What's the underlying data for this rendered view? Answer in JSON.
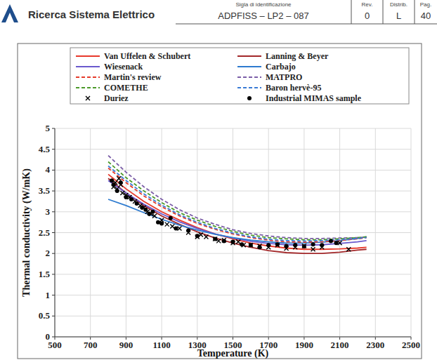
{
  "header": {
    "title": "Ricerca Sistema Elettrico",
    "columns": [
      "Sigla di identificazione",
      "Rev.",
      "Distrib.",
      "Pag."
    ],
    "values": [
      "ADPFISS – LP2 – 087",
      "0",
      "L",
      "40"
    ]
  },
  "chart_data": {
    "type": "line",
    "x_label": "Temperature (K)",
    "y_label": "Thermal conductivity (W/mK)",
    "xlim": [
      500,
      2500
    ],
    "xticks": [
      500,
      700,
      900,
      1100,
      1300,
      1500,
      1700,
      1900,
      2100,
      2300,
      2500
    ],
    "ylim": [
      0,
      5
    ],
    "yticks": [
      0,
      0.5,
      1,
      1.5,
      2,
      2.5,
      3,
      3.5,
      4,
      4.5,
      5
    ],
    "grid": true,
    "legend": "top",
    "series": [
      {
        "name": "Van Uffelen & Schubert",
        "type": "line",
        "line_style": "solid",
        "color": "#e8392b",
        "x": [
          800,
          900,
          1000,
          1100,
          1200,
          1300,
          1400,
          1500,
          1600,
          1700,
          1800,
          1900,
          2000,
          2100,
          2200,
          2250
        ],
        "values": [
          3.9,
          3.55,
          3.25,
          3.0,
          2.8,
          2.62,
          2.47,
          2.35,
          2.25,
          2.18,
          2.13,
          2.1,
          2.1,
          2.11,
          2.13,
          2.15
        ]
      },
      {
        "name": "Lanning & Beyer",
        "type": "line",
        "line_style": "solid",
        "color": "#a3282a",
        "x": [
          800,
          900,
          1000,
          1100,
          1200,
          1300,
          1400,
          1500,
          1600,
          1700,
          1800,
          1900,
          2000,
          2100,
          2200,
          2250
        ],
        "values": [
          3.8,
          3.45,
          3.15,
          2.9,
          2.7,
          2.52,
          2.37,
          2.25,
          2.15,
          2.07,
          2.02,
          2.0,
          2.0,
          2.03,
          2.08,
          2.1
        ]
      },
      {
        "name": "Wiesenack",
        "type": "line",
        "line_style": "solid",
        "color": "#6a5acd",
        "x": [
          800,
          900,
          1000,
          1100,
          1200,
          1300,
          1400,
          1500,
          1600,
          1700,
          1800,
          1900,
          2000,
          2100,
          2200,
          2250
        ],
        "values": [
          3.75,
          3.45,
          3.18,
          2.95,
          2.76,
          2.6,
          2.47,
          2.37,
          2.29,
          2.24,
          2.21,
          2.2,
          2.21,
          2.24,
          2.28,
          2.31
        ]
      },
      {
        "name": "Carbajo",
        "type": "line",
        "line_style": "solid",
        "color": "#2e7bcf",
        "x": [
          800,
          900,
          1000,
          1100,
          1200,
          1300,
          1400,
          1500,
          1600,
          1700,
          1800,
          1900,
          2000,
          2100,
          2200,
          2250
        ],
        "values": [
          3.3,
          3.15,
          2.98,
          2.82,
          2.68,
          2.56,
          2.46,
          2.38,
          2.32,
          2.28,
          2.25,
          2.25,
          2.27,
          2.31,
          2.36,
          2.4
        ]
      },
      {
        "name": "Martin's review",
        "type": "line",
        "line_style": "dashed",
        "color": "#e53b2b",
        "x": [
          800,
          900,
          1000,
          1100,
          1200,
          1300,
          1400,
          1500,
          1600,
          1700,
          1800,
          1900,
          2000,
          2100,
          2200,
          2250
        ],
        "values": [
          4.05,
          3.7,
          3.38,
          3.12,
          2.9,
          2.72,
          2.58,
          2.47,
          2.38,
          2.32,
          2.28,
          2.27,
          2.28,
          2.31,
          2.35,
          2.38
        ]
      },
      {
        "name": "MATPRO",
        "type": "line",
        "line_style": "dashed",
        "color": "#7b5ea7",
        "x": [
          800,
          900,
          1000,
          1100,
          1200,
          1300,
          1400,
          1500,
          1600,
          1700,
          1800,
          1900,
          2000,
          2100,
          2200,
          2250
        ],
        "values": [
          4.35,
          3.95,
          3.6,
          3.3,
          3.05,
          2.85,
          2.7,
          2.57,
          2.48,
          2.42,
          2.38,
          2.36,
          2.36,
          2.37,
          2.38,
          2.39
        ]
      },
      {
        "name": "COMETHE",
        "type": "line",
        "line_style": "dashed",
        "color": "#4c9a2a",
        "x": [
          800,
          900,
          1000,
          1100,
          1200,
          1300,
          1400,
          1500,
          1600,
          1700,
          1800,
          1900,
          2000,
          2100,
          2200,
          2250
        ],
        "values": [
          4.2,
          3.82,
          3.5,
          3.22,
          2.98,
          2.8,
          2.65,
          2.53,
          2.44,
          2.38,
          2.35,
          2.33,
          2.33,
          2.35,
          2.38,
          2.4
        ]
      },
      {
        "name": "Baron hervè-95",
        "type": "line",
        "line_style": "dashed",
        "color": "#3a7bd5",
        "x": [
          800,
          900,
          1000,
          1100,
          1200,
          1300,
          1400,
          1500,
          1600,
          1700,
          1800,
          1900,
          2000,
          2100,
          2200,
          2250
        ],
        "values": [
          4.1,
          3.75,
          3.43,
          3.16,
          2.93,
          2.75,
          2.6,
          2.49,
          2.4,
          2.34,
          2.31,
          2.3,
          2.31,
          2.33,
          2.36,
          2.38
        ]
      },
      {
        "name": "Duriez",
        "type": "scatter",
        "marker": "x",
        "color": "#000000",
        "x": [
          830,
          840,
          850,
          860,
          870,
          880,
          900,
          920,
          950,
          980,
          1000,
          1020,
          1040,
          1060,
          1100,
          1130,
          1160,
          1200,
          1250,
          1300,
          1320,
          1350,
          1400,
          1420,
          1450,
          1500,
          1530,
          1560,
          1600,
          1650,
          1700,
          1750,
          1800,
          1850,
          1900,
          1950,
          2000,
          2100,
          2150
        ],
        "values": [
          3.6,
          3.7,
          3.55,
          3.8,
          3.65,
          3.45,
          3.4,
          3.35,
          3.25,
          3.15,
          3.1,
          3.0,
          2.95,
          2.9,
          2.8,
          2.7,
          2.65,
          2.6,
          2.5,
          2.4,
          2.45,
          2.4,
          2.35,
          2.3,
          2.32,
          2.25,
          2.28,
          2.2,
          2.2,
          2.18,
          2.15,
          2.2,
          2.12,
          2.15,
          2.18,
          2.1,
          2.15,
          2.25,
          2.1
        ]
      },
      {
        "name": "Industrial MIMAS sample",
        "type": "scatter",
        "marker": "circle",
        "color": "#000000",
        "x": [
          820,
          830,
          850,
          870,
          900,
          930,
          960,
          990,
          1010,
          1030,
          1050,
          1080,
          1100,
          1150,
          1180,
          1250,
          1300,
          1400,
          1450,
          1500,
          1550,
          1600,
          1650,
          1700,
          1750,
          1800,
          1850,
          1900,
          1950,
          2000,
          2050,
          2080
        ],
        "values": [
          3.75,
          3.65,
          3.5,
          3.7,
          3.35,
          3.3,
          3.2,
          3.1,
          3.05,
          2.95,
          3.0,
          2.75,
          2.72,
          2.85,
          2.6,
          2.55,
          2.42,
          2.35,
          2.3,
          2.28,
          2.22,
          2.2,
          2.15,
          2.2,
          2.22,
          2.18,
          2.2,
          2.17,
          2.22,
          2.2,
          2.3,
          2.25
        ]
      }
    ]
  }
}
